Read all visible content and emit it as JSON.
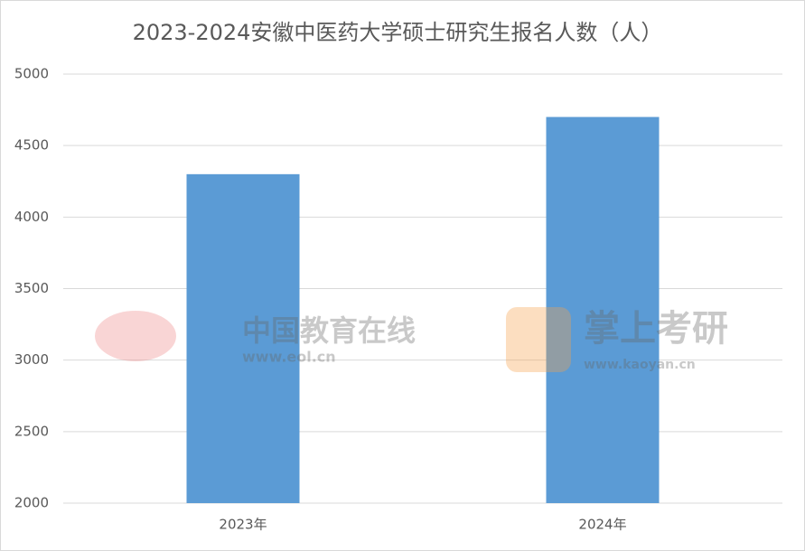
{
  "chart_data": {
    "type": "bar",
    "title": "2023-2024安徽中医药大学硕士研究生报名人数（人）",
    "categories": [
      "2023年",
      "2024年"
    ],
    "values": [
      4300,
      4700
    ],
    "color": "#5b9bd5",
    "ylim": [
      2000,
      5000
    ],
    "yticks": [
      2000,
      2500,
      3000,
      3500,
      4000,
      4500,
      5000
    ],
    "grid": true
  },
  "watermarks": [
    "中国教育在线",
    "www.eol.cn",
    "掌上考研",
    "www.kaoyan.cn"
  ]
}
